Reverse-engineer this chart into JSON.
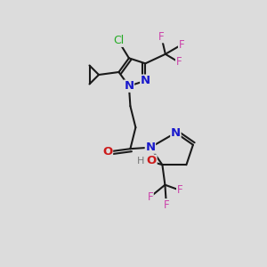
{
  "bg_color": "#dcdcdc",
  "bond_color": "#1a1a1a",
  "bond_width": 1.5,
  "atom_colors": {
    "N": "#1a1acc",
    "O": "#cc1a1a",
    "Cl": "#22aa22",
    "F": "#cc44aa",
    "H": "#777777",
    "C": "#1a1a1a"
  },
  "font_size": 8.5,
  "fig_bg": "#dcdcdc"
}
